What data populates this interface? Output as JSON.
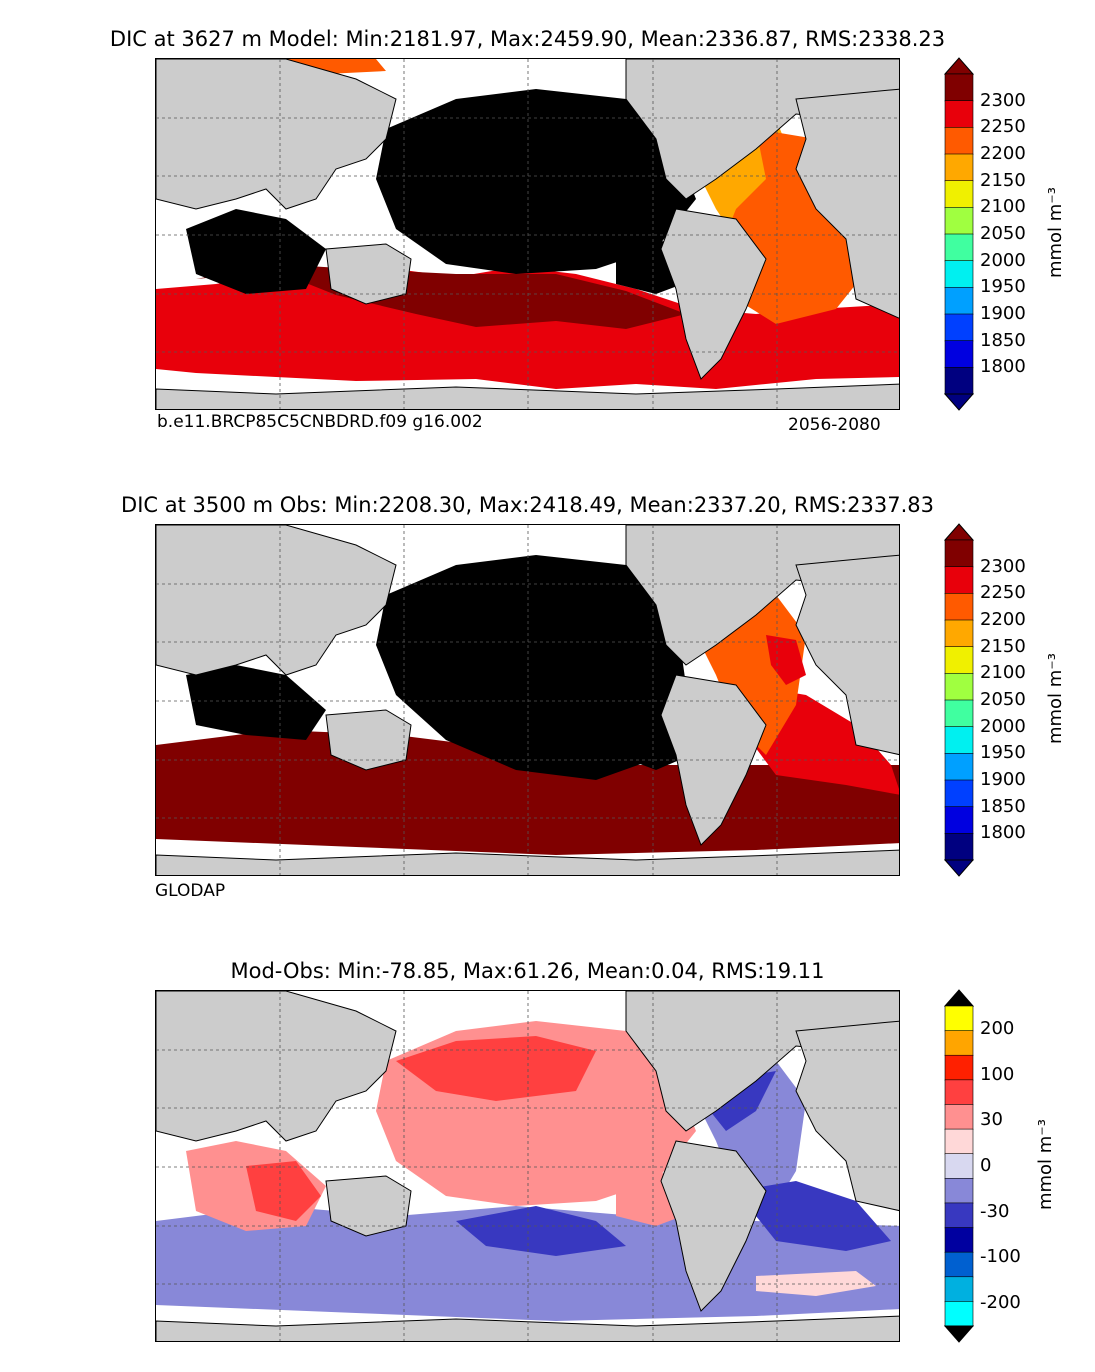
{
  "panels": [
    {
      "title": "DIC at 3627 m Model: Min:2181.97, Max:2459.90, Mean:2336.87, RMS:2338.23",
      "caption_left": "b.e11.BRCP85C5CNBDRD.f09 g16.002",
      "caption_right": "2056-2080",
      "colorbar": {
        "unit": "mmol m⁻³",
        "ticks": [
          "2300",
          "2250",
          "2200",
          "2150",
          "2100",
          "2050",
          "2000",
          "1950",
          "1900",
          "1850",
          "1800"
        ],
        "colors": [
          "#800000",
          "#e8000b",
          "#ff5a00",
          "#ffa800",
          "#f0f000",
          "#a0ff40",
          "#40ffa0",
          "#00f0f0",
          "#00a0ff",
          "#0040ff",
          "#0000e0",
          "#000080"
        ],
        "extend_colors": [
          "#800000",
          "#000080"
        ]
      }
    },
    {
      "title": "DIC at 3500 m Obs: Min:2208.30, Max:2418.49, Mean:2337.20, RMS:2337.83",
      "caption_left": "GLODAP",
      "caption_right": "",
      "colorbar": {
        "unit": "mmol m⁻³",
        "ticks": [
          "2300",
          "2250",
          "2200",
          "2150",
          "2100",
          "2050",
          "2000",
          "1950",
          "1900",
          "1850",
          "1800"
        ],
        "colors": [
          "#800000",
          "#e8000b",
          "#ff5a00",
          "#ffa800",
          "#f0f000",
          "#a0ff40",
          "#40ffa0",
          "#00f0f0",
          "#00a0ff",
          "#0040ff",
          "#0000e0",
          "#000080"
        ],
        "extend_colors": [
          "#800000",
          "#000080"
        ]
      }
    },
    {
      "title": "Mod-Obs: Min:-78.85, Max:61.26, Mean:0.04, RMS:19.11",
      "caption_left": "",
      "caption_right": "",
      "colorbar": {
        "unit": "mmol m⁻³",
        "ticks": [
          "200",
          "100",
          "30",
          "0",
          "-30",
          "-100",
          "-200"
        ],
        "colors": [
          "#ffff00",
          "#ffa500",
          "#ff2000",
          "#ff4040",
          "#ff9090",
          "#ffd8d8",
          "#d8d8f0",
          "#8888d8",
          "#3838c0",
          "#0000a0",
          "#0060d0",
          "#00b0e0",
          "#00ffff"
        ],
        "extend_colors": [
          "#000000",
          "#000000"
        ]
      }
    }
  ],
  "map_colors": {
    "land": "#cccccc",
    "ocean_blank": "#ffffff",
    "coast": "#000000",
    "grid": "#555555"
  }
}
